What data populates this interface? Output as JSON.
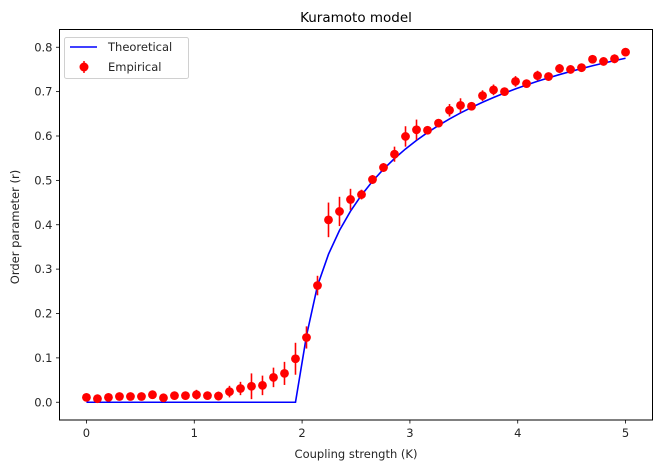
{
  "chart_data": {
    "type": "line",
    "title": "Kuramoto model",
    "xlabel": "Coupling strength (K)",
    "ylabel": "Order parameter (r)",
    "xlim": [
      -0.25,
      5.25
    ],
    "ylim": [
      -0.04,
      0.84
    ],
    "xticks": [
      0,
      1,
      2,
      3,
      4,
      5
    ],
    "xtick_labels": [
      "0",
      "1",
      "2",
      "3",
      "4",
      "5"
    ],
    "yticks": [
      0.0,
      0.1,
      0.2,
      0.3,
      0.4,
      0.5,
      0.6,
      0.7,
      0.8
    ],
    "ytick_labels": [
      "0.0",
      "0.1",
      "0.2",
      "0.3",
      "0.4",
      "0.5",
      "0.6",
      "0.7",
      "0.8"
    ],
    "grid": false,
    "legend": {
      "position": "top-left",
      "entries": [
        "Theoretical",
        "Empirical"
      ]
    },
    "x": {
      "start": 0,
      "stop": 5,
      "num": 50
    },
    "series": [
      {
        "name": "Theoretical",
        "kind": "line",
        "color": "#0000ff",
        "critical_coupling": 1.995,
        "formula": "r = sqrt(1 - Kc/K) for K > Kc, else 0"
      },
      {
        "name": "Empirical",
        "kind": "errorbar",
        "color": "#ff0000",
        "values": [
          0.011,
          0.008,
          0.011,
          0.013,
          0.013,
          0.013,
          0.017,
          0.01,
          0.015,
          0.015,
          0.017,
          0.015,
          0.014,
          0.024,
          0.031,
          0.036,
          0.038,
          0.056,
          0.065,
          0.098,
          0.146,
          0.263,
          0.411,
          0.43,
          0.457,
          0.468,
          0.502,
          0.529,
          0.559,
          0.599,
          0.614,
          0.613,
          0.629,
          0.658,
          0.669,
          0.667,
          0.691,
          0.704,
          0.7,
          0.723,
          0.718,
          0.736,
          0.734,
          0.752,
          0.75,
          0.754,
          0.773,
          0.768,
          0.774,
          0.789
        ],
        "errors": [
          0.005,
          0.004,
          0.005,
          0.005,
          0.005,
          0.005,
          0.005,
          0.004,
          0.005,
          0.005,
          0.011,
          0.008,
          0.01,
          0.013,
          0.015,
          0.029,
          0.022,
          0.022,
          0.026,
          0.036,
          0.025,
          0.022,
          0.039,
          0.033,
          0.024,
          0.011,
          0.01,
          0.01,
          0.017,
          0.023,
          0.023,
          0.008,
          0.008,
          0.014,
          0.016,
          0.009,
          0.012,
          0.012,
          0.009,
          0.012,
          0.008,
          0.011,
          0.008,
          0.01,
          0.007,
          0.007,
          0.008,
          0.007,
          0.01,
          0.009
        ]
      }
    ]
  }
}
